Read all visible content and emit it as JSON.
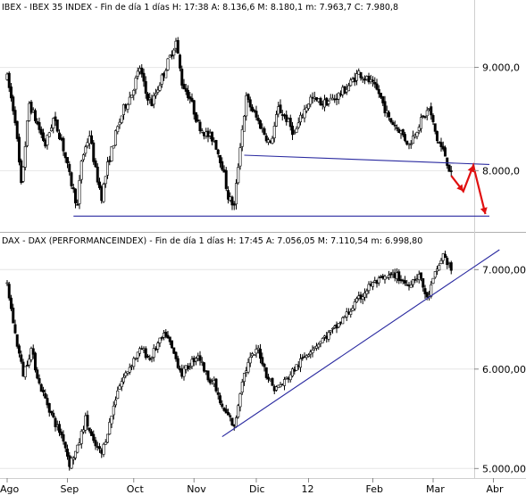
{
  "chart_data": [
    {
      "type": "candlestick",
      "title": "IBEX - IBEX 35 INDEX - Fin de día 1 días  H: 17:38  A: 8.136,6  M: 8.180,1  m: 7.963,7  C: 7.980,8",
      "ylim": [
        7450,
        9480
      ],
      "yticks": [
        {
          "value": 8000,
          "label": "8.000,0"
        },
        {
          "value": 9000,
          "label": "9.000,0"
        }
      ],
      "days_range": [
        0,
        214
      ],
      "series": [
        {
          "name": "",
          "anchors": [
            [
              0,
              8800
            ],
            [
              6,
              8400
            ],
            [
              10,
              7950
            ],
            [
              14,
              8600
            ],
            [
              18,
              8300
            ],
            [
              24,
              8450
            ],
            [
              30,
              8150
            ],
            [
              34,
              7950
            ],
            [
              38,
              8350
            ],
            [
              42,
              8250
            ],
            [
              46,
              8050
            ],
            [
              48,
              7600
            ],
            [
              50,
              7900
            ],
            [
              54,
              8250
            ],
            [
              58,
              8550
            ],
            [
              62,
              8700
            ],
            [
              66,
              8950
            ],
            [
              70,
              8650
            ],
            [
              74,
              8550
            ],
            [
              78,
              8750
            ],
            [
              84,
              8950
            ],
            [
              88,
              9050
            ],
            [
              92,
              8800
            ],
            [
              98,
              9120
            ],
            [
              102,
              8800
            ],
            [
              106,
              8650
            ],
            [
              112,
              8500
            ],
            [
              116,
              8400
            ],
            [
              120,
              8050
            ],
            [
              124,
              7950
            ],
            [
              128,
              7620
            ],
            [
              132,
              8150
            ],
            [
              138,
              8650
            ],
            [
              142,
              8550
            ],
            [
              146,
              8350
            ],
            [
              150,
              8250
            ],
            [
              154,
              8650
            ],
            [
              158,
              8500
            ],
            [
              162,
              8320
            ],
            [
              166,
              8550
            ],
            [
              172,
              8650
            ],
            [
              180,
              8600
            ],
            [
              186,
              8700
            ],
            [
              192,
              8800
            ],
            [
              196,
              8880
            ],
            [
              202,
              8780
            ],
            [
              208,
              8650
            ],
            [
              214,
              8500
            ]
          ]
        }
      ],
      "extra_anchors_note": "",
      "lines": [
        {
          "color": "#2a2aa0",
          "points": [
            [
              104,
              8150
            ],
            [
              150,
              8080
            ],
            [
              214,
              8050
            ]
          ]
        },
        {
          "color": "#2a2aa0",
          "points": [
            [
              40,
              7560
            ],
            [
              214,
              7560
            ]
          ]
        }
      ]
    },
    {
      "type": "candlestick",
      "title": "DAX - DAX (PERFORMANCEINDEX) - Fin de día 1 días  H: 17:45  A: 7.056,05  M: 7.110,54  m: 6.998,80",
      "ylim": [
        4940,
        7200
      ],
      "yticks": [
        {
          "value": 5000,
          "label": "5.000,00"
        },
        {
          "value": 6000,
          "label": "6.000,00"
        },
        {
          "value": 7000,
          "label": "7.000,00"
        }
      ],
      "lines": [
        {
          "color": "#2a2aa0",
          "points": [
            [
              118,
              5350
            ],
            [
              214,
              7120
            ]
          ]
        }
      ]
    }
  ],
  "x_axis": {
    "months": [
      {
        "label": "Ago",
        "day": 0
      },
      {
        "label": "Sep",
        "day": 30
      },
      {
        "label": "Oct",
        "day": 63
      },
      {
        "label": "Nov",
        "day": 93
      },
      {
        "label": "Dic",
        "day": 124
      },
      {
        "label": "12",
        "day": 150
      },
      {
        "label": "Feb",
        "day": 182
      },
      {
        "label": "Mar",
        "day": 212
      },
      {
        "label": "Abr",
        "day": 242
      }
    ]
  },
  "ibex_data": {
    "anchors": [
      [
        0,
        8900
      ],
      [
        4,
        8500
      ],
      [
        7,
        7850
      ],
      [
        11,
        8650
      ],
      [
        15,
        8450
      ],
      [
        19,
        8250
      ],
      [
        23,
        8500
      ],
      [
        27,
        8300
      ],
      [
        31,
        7950
      ],
      [
        35,
        7650
      ],
      [
        37,
        8100
      ],
      [
        41,
        8350
      ],
      [
        44,
        8000
      ],
      [
        47,
        7750
      ],
      [
        50,
        8050
      ],
      [
        54,
        8350
      ],
      [
        58,
        8600
      ],
      [
        62,
        8750
      ],
      [
        66,
        9000
      ],
      [
        69,
        8750
      ],
      [
        72,
        8650
      ],
      [
        76,
        8850
      ],
      [
        80,
        9050
      ],
      [
        84,
        9250
      ],
      [
        87,
        8850
      ],
      [
        91,
        8700
      ],
      [
        95,
        8450
      ],
      [
        99,
        8350
      ],
      [
        103,
        8300
      ],
      [
        107,
        8050
      ],
      [
        110,
        7750
      ],
      [
        113,
        7650
      ],
      [
        116,
        8250
      ],
      [
        119,
        8700
      ],
      [
        123,
        8550
      ],
      [
        127,
        8400
      ],
      [
        131,
        8250
      ],
      [
        135,
        8600
      ],
      [
        139,
        8500
      ],
      [
        143,
        8350
      ],
      [
        147,
        8550
      ],
      [
        151,
        8700
      ],
      [
        157,
        8650
      ],
      [
        163,
        8700
      ],
      [
        169,
        8800
      ],
      [
        175,
        8950
      ],
      [
        181,
        8850
      ],
      [
        185,
        8750
      ],
      [
        190,
        8500
      ],
      [
        195,
        8400
      ],
      [
        200,
        8250
      ],
      [
        205,
        8450
      ],
      [
        210,
        8600
      ],
      [
        214,
        8300
      ],
      [
        218,
        8150
      ],
      [
        221,
        7950
      ]
    ],
    "red_projection": [
      [
        221,
        7950
      ],
      [
        227,
        7800
      ],
      [
        232,
        8050
      ],
      [
        238,
        7580
      ]
    ],
    "support_line_1": [
      [
        118,
        8150
      ],
      [
        240,
        8060
      ]
    ],
    "support_line_2": [
      [
        33,
        7560
      ],
      [
        240,
        7560
      ]
    ]
  },
  "dax_data": {
    "anchors": [
      [
        0,
        6850
      ],
      [
        4,
        6350
      ],
      [
        8,
        5950
      ],
      [
        12,
        6200
      ],
      [
        16,
        5850
      ],
      [
        20,
        5650
      ],
      [
        24,
        5450
      ],
      [
        28,
        5300
      ],
      [
        31,
        5050
      ],
      [
        35,
        5200
      ],
      [
        39,
        5500
      ],
      [
        43,
        5250
      ],
      [
        47,
        5150
      ],
      [
        51,
        5450
      ],
      [
        55,
        5800
      ],
      [
        59,
        5950
      ],
      [
        63,
        6100
      ],
      [
        67,
        6200
      ],
      [
        71,
        6100
      ],
      [
        75,
        6250
      ],
      [
        79,
        6350
      ],
      [
        83,
        6150
      ],
      [
        87,
        5950
      ],
      [
        91,
        6050
      ],
      [
        95,
        6150
      ],
      [
        99,
        5950
      ],
      [
        103,
        5850
      ],
      [
        107,
        5600
      ],
      [
        111,
        5500
      ],
      [
        113,
        5400
      ],
      [
        117,
        5900
      ],
      [
        121,
        6100
      ],
      [
        125,
        6200
      ],
      [
        129,
        5950
      ],
      [
        133,
        5800
      ],
      [
        137,
        5850
      ],
      [
        141,
        5950
      ],
      [
        145,
        6050
      ],
      [
        151,
        6200
      ],
      [
        157,
        6300
      ],
      [
        163,
        6400
      ],
      [
        169,
        6550
      ],
      [
        175,
        6700
      ],
      [
        181,
        6850
      ],
      [
        187,
        6900
      ],
      [
        193,
        6950
      ],
      [
        199,
        6850
      ],
      [
        205,
        6950
      ],
      [
        209,
        6700
      ],
      [
        213,
        6950
      ],
      [
        217,
        7150
      ],
      [
        221,
        7000
      ]
    ],
    "trend_line": [
      [
        107,
        5320
      ],
      [
        245,
        7200
      ]
    ]
  }
}
